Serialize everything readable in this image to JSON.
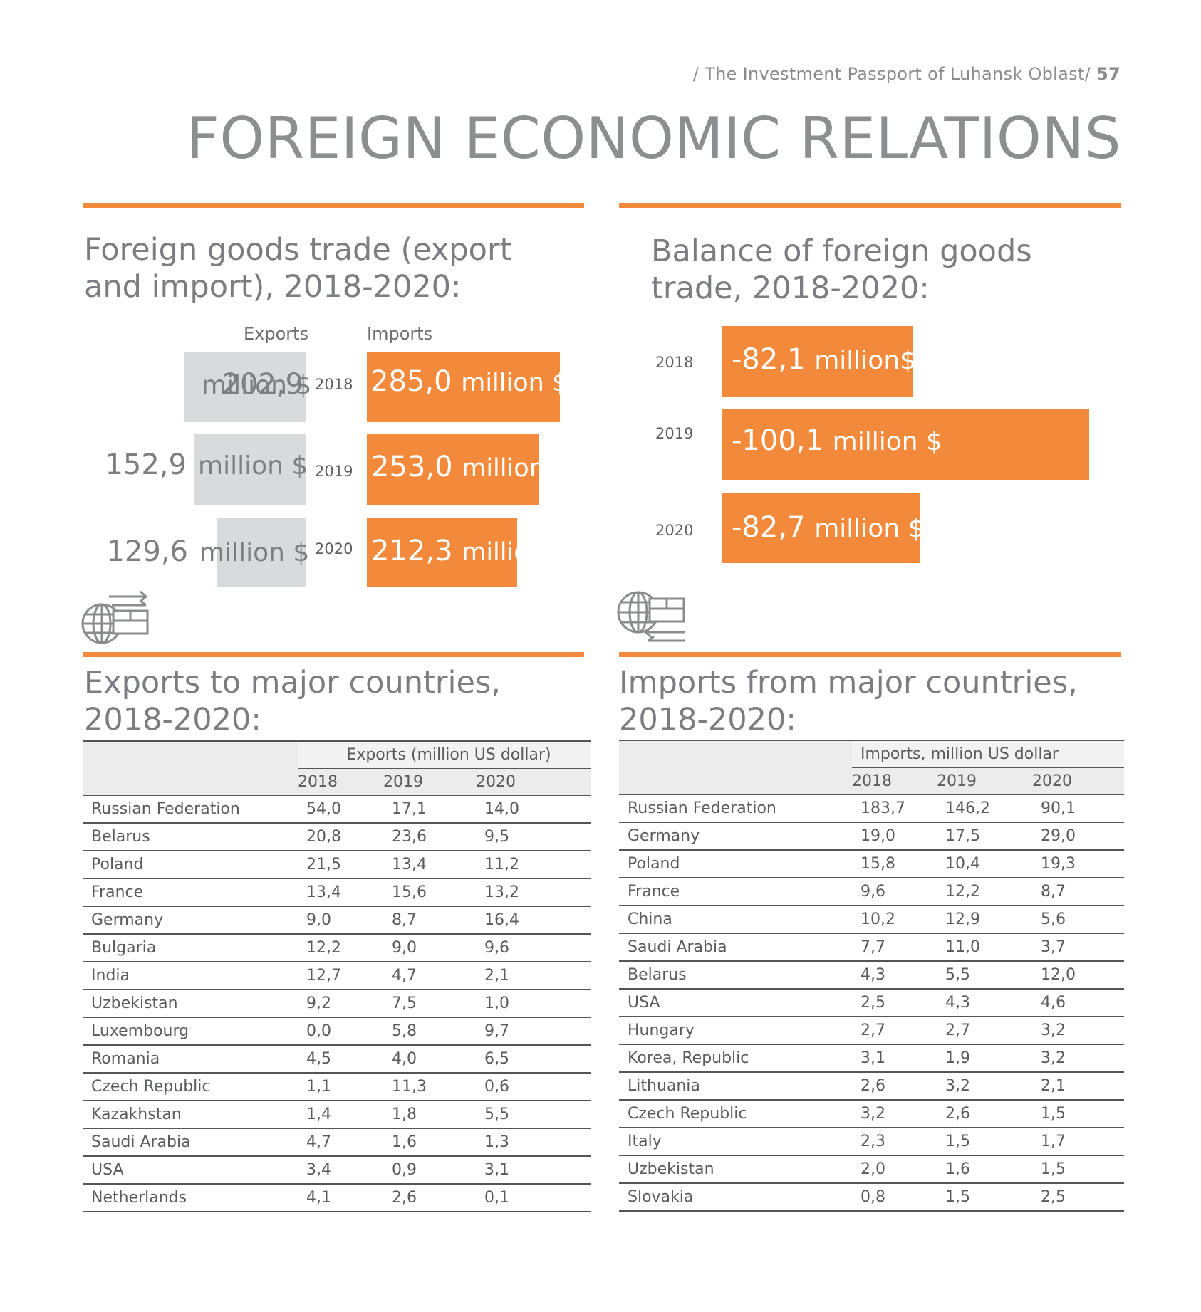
{
  "header": {
    "text": "/ The Investment Passport of Luhansk Oblast/",
    "page_number": "57"
  },
  "title": "FOREIGN ECONOMIC RELATIONS",
  "trade": {
    "title_line1": "Foreign goods trade (export",
    "title_line2": "and import), 2018-2020:",
    "col_exports": "Exports",
    "col_imports": "Imports",
    "rows": [
      {
        "year": "2018",
        "exp_value": "202,9",
        "exp_unit": "million $",
        "imp_value": "285,0",
        "imp_unit": "million $"
      },
      {
        "year": "2019",
        "exp_value": "152,9",
        "exp_unit": "million $",
        "imp_value": "253,0",
        "imp_unit": "million $"
      },
      {
        "year": "2020",
        "exp_value": "129,6",
        "exp_unit": "million $",
        "imp_value": "212,3",
        "imp_unit": "million $"
      }
    ]
  },
  "balance": {
    "title_line1": "Balance of foreign goods",
    "title_line2": "trade, 2018-2020:",
    "rows": [
      {
        "year": "2018",
        "value": "-82,1",
        "unit": "million$"
      },
      {
        "year": "2019",
        "value": "-100,1",
        "unit": "million $"
      },
      {
        "year": "2020",
        "value": "-82,7",
        "unit": "million $"
      }
    ]
  },
  "exports_table": {
    "title_line1": "Exports to major countries,",
    "title_line2": "2018-2020:",
    "group_header": "Exports (million US dollar)",
    "years": [
      "2018",
      "2019",
      "2020"
    ],
    "rows": [
      [
        "Russian Federation",
        "54,0",
        "17,1",
        "14,0"
      ],
      [
        "Belarus",
        "20,8",
        "23,6",
        "9,5"
      ],
      [
        "Poland",
        "21,5",
        "13,4",
        "11,2"
      ],
      [
        "France",
        "13,4",
        "15,6",
        "13,2"
      ],
      [
        "Germany",
        "9,0",
        "8,7",
        "16,4"
      ],
      [
        "Bulgaria",
        "12,2",
        "9,0",
        "9,6"
      ],
      [
        "India",
        "12,7",
        "4,7",
        "2,1"
      ],
      [
        "Uzbekistan",
        "9,2",
        "7,5",
        "1,0"
      ],
      [
        "Luxembourg",
        "0,0",
        "5,8",
        "9,7"
      ],
      [
        "Romania",
        "4,5",
        "4,0",
        "6,5"
      ],
      [
        "Czech Republic",
        "1,1",
        "11,3",
        "0,6"
      ],
      [
        "Kazakhstan",
        "1,4",
        "1,8",
        "5,5"
      ],
      [
        "Saudi Arabia",
        "4,7",
        "1,6",
        "1,3"
      ],
      [
        "USA",
        "3,4",
        "0,9",
        "3,1"
      ],
      [
        "Netherlands",
        "4,1",
        "2,6",
        "0,1"
      ]
    ]
  },
  "imports_table": {
    "title_line1": "Imports from major countries,",
    "title_line2": "2018-2020:",
    "group_header": "Imports, million US dollar",
    "years": [
      "2018",
      "2019",
      "2020"
    ],
    "rows": [
      [
        "Russian Federation",
        "183,7",
        "146,2",
        "90,1"
      ],
      [
        "Germany",
        "19,0",
        "17,5",
        "29,0"
      ],
      [
        "Poland",
        "15,8",
        "10,4",
        "19,3"
      ],
      [
        "France",
        "9,6",
        "12,2",
        "8,7"
      ],
      [
        "China",
        "10,2",
        "12,9",
        "5,6"
      ],
      [
        "Saudi Arabia",
        "7,7",
        "11,0",
        "3,7"
      ],
      [
        "Belarus",
        "4,3",
        "5,5",
        "12,0"
      ],
      [
        "USA",
        "2,5",
        "4,3",
        "4,6"
      ],
      [
        "Hungary",
        "2,7",
        "2,7",
        "3,2"
      ],
      [
        "Korea, Republic",
        "3,1",
        "1,9",
        "3,2"
      ],
      [
        "Lithuania",
        "2,6",
        "3,2",
        "2,1"
      ],
      [
        "Czech Republic",
        "3,2",
        "2,6",
        "1,5"
      ],
      [
        "Italy",
        "2,3",
        "1,5",
        "1,7"
      ],
      [
        "Uzbekistan",
        "2,0",
        "1,6",
        "1,5"
      ],
      [
        "Slovakia",
        "0,8",
        "1,5",
        "2,5"
      ]
    ]
  },
  "icons": {
    "export": "globe-export-icon",
    "import": "globe-import-icon"
  },
  "colors": {
    "accent": "#f3893a",
    "grey_box": "#d8dbdb",
    "text": "#6d6e70"
  }
}
